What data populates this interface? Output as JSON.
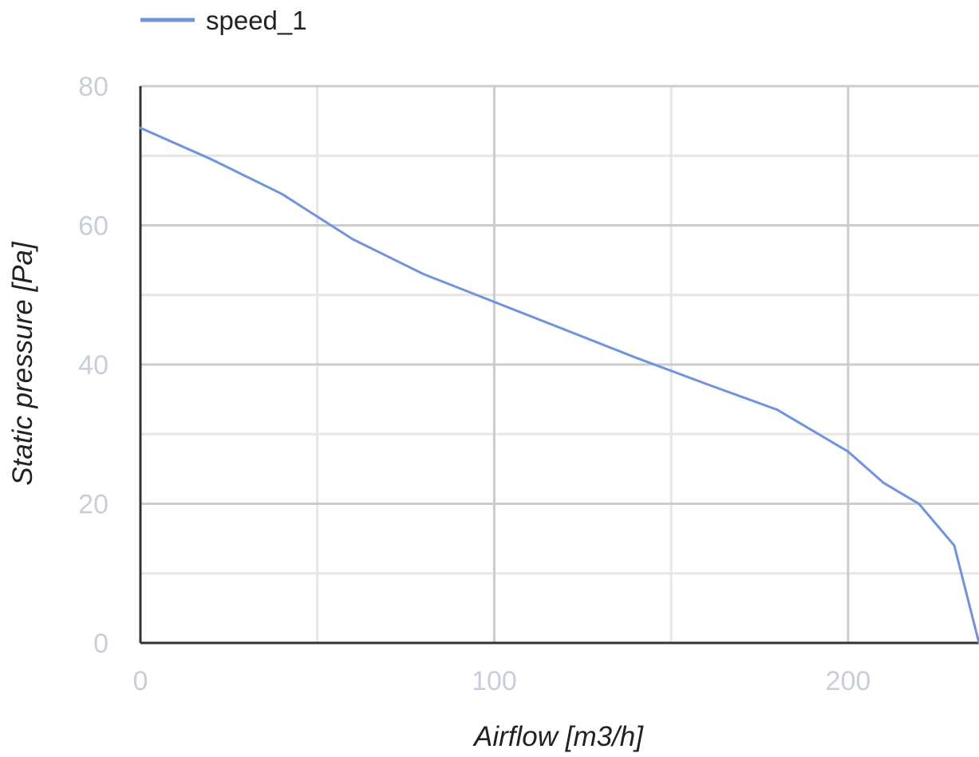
{
  "chart_data": {
    "type": "line",
    "title": "",
    "xlabel": "Airflow [m3/h]",
    "ylabel": "Static pressure [Pa]",
    "xlim": [
      0,
      237
    ],
    "ylim": [
      0,
      80
    ],
    "x_ticks": [
      "0",
      "100",
      "200"
    ],
    "y_ticks": [
      "0",
      "20",
      "40",
      "60",
      "80"
    ],
    "x_tick_values": [
      0,
      100,
      200
    ],
    "y_tick_values": [
      0,
      20,
      40,
      60,
      80
    ],
    "x_minor_values": [
      50,
      150
    ],
    "y_minor_values": [
      10,
      30,
      50,
      70
    ],
    "grid": true,
    "legend_position": "top-left",
    "series": [
      {
        "name": "speed_1",
        "color": "#6f93dd",
        "x": [
          0,
          20,
          40,
          60,
          80,
          100,
          120,
          140,
          160,
          180,
          200,
          210,
          220,
          230,
          237
        ],
        "y": [
          74,
          69.5,
          64.5,
          58,
          53,
          49,
          45,
          41,
          37.2,
          33.5,
          27.5,
          23,
          20,
          14,
          0
        ]
      }
    ]
  }
}
